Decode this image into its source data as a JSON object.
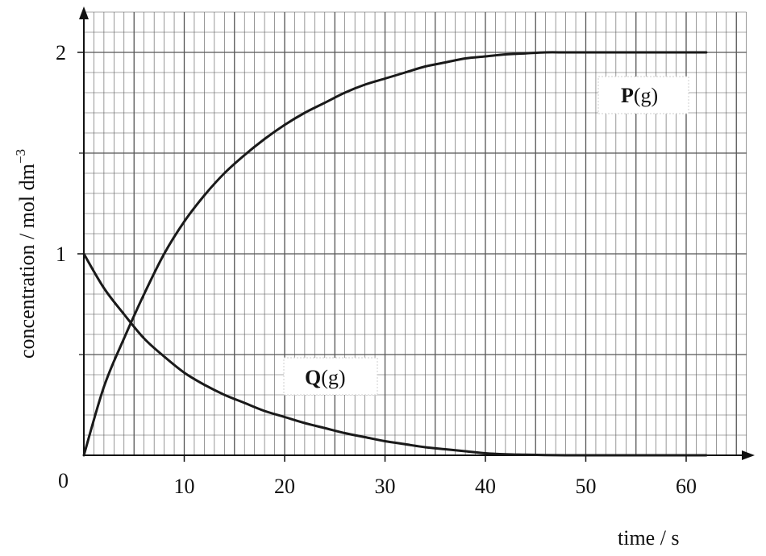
{
  "chart_data": {
    "type": "line",
    "title": "",
    "xlabel": "time / s",
    "ylabel": "concentration / mol dm",
    "ylabel_superscript": "−3",
    "origin_label": "0",
    "xlim": [
      0,
      66
    ],
    "ylim": [
      0,
      2.2
    ],
    "x_ticks": [
      10,
      20,
      30,
      40,
      50,
      60
    ],
    "x_tick_labels": [
      "10",
      "20",
      "30",
      "40",
      "50",
      "60"
    ],
    "y_ticks": [
      1,
      2
    ],
    "y_tick_labels": [
      "1",
      "2"
    ],
    "grid": true,
    "series": [
      {
        "name": "P(g)",
        "name_main": "P",
        "name_suffix": "(g)",
        "x": [
          0,
          2,
          4,
          6,
          8,
          10,
          12,
          14,
          16,
          18,
          20,
          22,
          24,
          26,
          28,
          30,
          32,
          34,
          36,
          38,
          40,
          42,
          44,
          46,
          48,
          50,
          52,
          54,
          56,
          58,
          60,
          62
        ],
        "values": [
          0,
          0.34,
          0.58,
          0.8,
          1.0,
          1.16,
          1.29,
          1.4,
          1.49,
          1.57,
          1.64,
          1.7,
          1.75,
          1.8,
          1.84,
          1.87,
          1.9,
          1.93,
          1.95,
          1.97,
          1.98,
          1.99,
          1.995,
          2.0,
          2.0,
          2.0,
          2.0,
          2.0,
          2.0,
          2.0,
          2.0,
          2.0
        ]
      },
      {
        "name": "Q(g)",
        "name_main": "Q",
        "name_suffix": "(g)",
        "x": [
          0,
          2,
          4,
          6,
          8,
          10,
          12,
          14,
          16,
          18,
          20,
          22,
          24,
          26,
          28,
          30,
          32,
          34,
          36,
          38,
          40,
          42,
          44,
          46,
          48,
          50,
          52,
          54,
          56,
          58,
          60,
          62
        ],
        "values": [
          1.0,
          0.83,
          0.7,
          0.58,
          0.49,
          0.41,
          0.35,
          0.3,
          0.26,
          0.22,
          0.19,
          0.16,
          0.135,
          0.11,
          0.09,
          0.07,
          0.055,
          0.04,
          0.03,
          0.02,
          0.01,
          0.005,
          0.003,
          0.001,
          0,
          0,
          0,
          0,
          0,
          0,
          0,
          0
        ]
      }
    ]
  }
}
